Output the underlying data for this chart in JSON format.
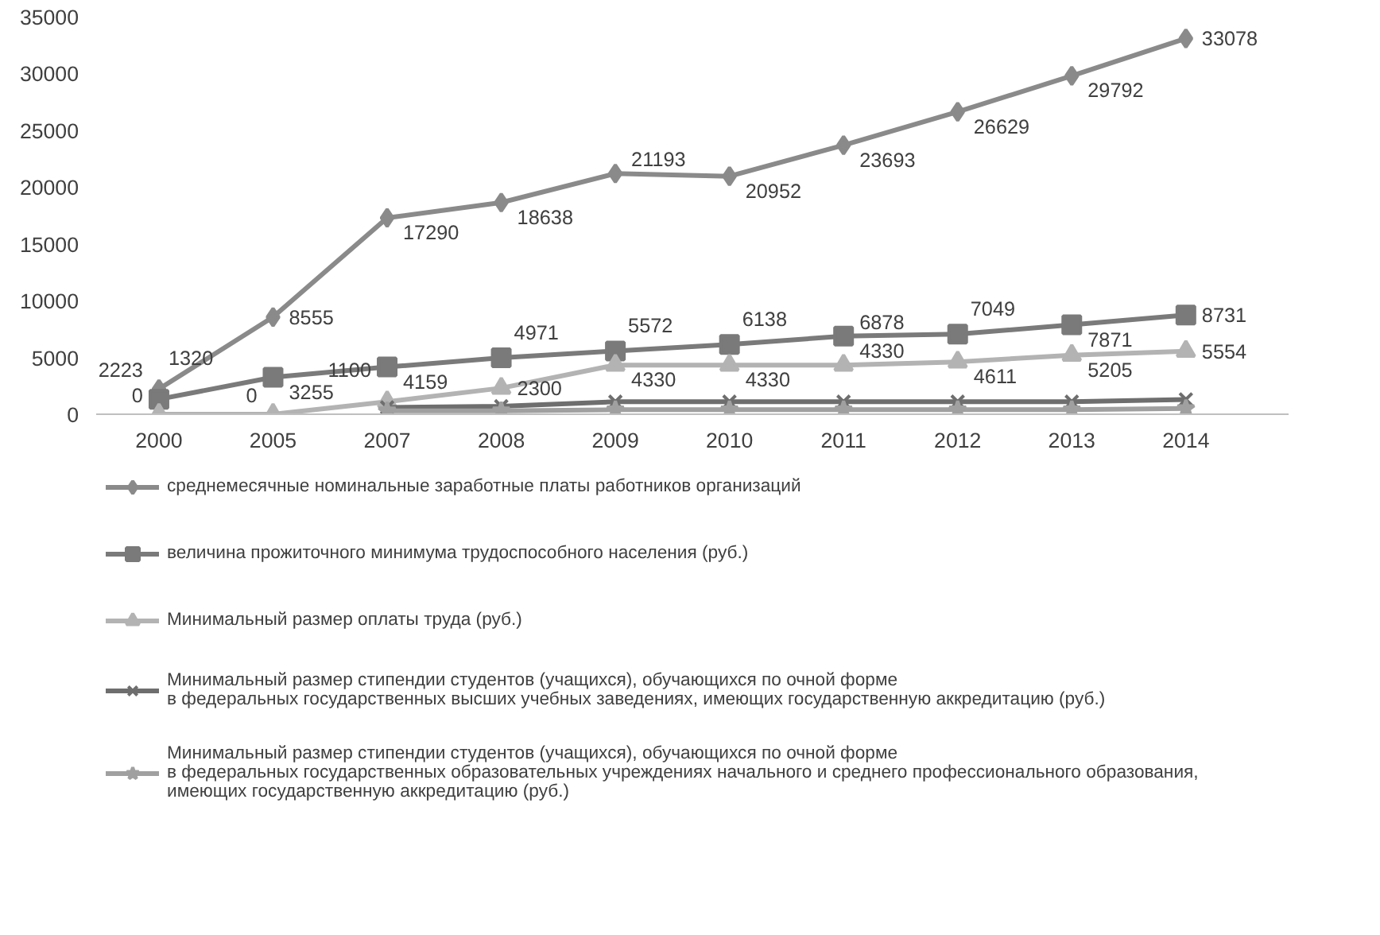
{
  "chart_data": {
    "type": "line",
    "categories": [
      "2000",
      "2005",
      "2007",
      "2008",
      "2009",
      "2010",
      "2011",
      "2012",
      "2013",
      "2014"
    ],
    "ylim": [
      0,
      35000
    ],
    "yticks": [
      0,
      5000,
      10000,
      15000,
      20000,
      25000,
      30000,
      35000
    ],
    "grid": false,
    "legend": "bottom",
    "line_style": "solid",
    "series": [
      {
        "name": "среднемесячные номинальные заработные платы работников организаций",
        "color": "#8a8a8a",
        "marker": "diamond",
        "values": [
          2223,
          8555,
          17290,
          18638,
          21193,
          20952,
          23693,
          26629,
          29792,
          33078
        ],
        "value_labels": [
          "2223",
          "8555",
          "17290",
          "18638",
          "21193",
          "20952",
          "23693",
          "26629",
          "29792",
          "33078"
        ]
      },
      {
        "name": "величина прожиточного минимума трудоспособного населения (руб.)",
        "color": "#7a7a7a",
        "marker": "square",
        "values": [
          1320,
          3255,
          4159,
          4971,
          5572,
          6138,
          6878,
          7049,
          7871,
          8731
        ],
        "value_labels": [
          "1320",
          "3255",
          "4159",
          "4971",
          "5572",
          "6138",
          "6878",
          "7049",
          "7871",
          "8731"
        ]
      },
      {
        "name": "Минимальный размер оплаты труда (руб.)",
        "color": "#b3b3b3",
        "marker": "triangle",
        "values": [
          0,
          0,
          1100,
          2300,
          4330,
          4330,
          4330,
          4611,
          5205,
          5554
        ],
        "value_labels": [
          "0",
          "0",
          "1100",
          "2300",
          "4330",
          "4330",
          "4330",
          "4611",
          "5205",
          "5554"
        ]
      },
      {
        "name": "Минимальный размер стипендии студентов (учащихся), обучающихся по очной форме\nв федеральных государственных высших учебных заведениях, имеющих государственную аккредитацию (руб.)",
        "color": "#6e6e6e",
        "marker": "cross",
        "values": [
          null,
          null,
          600,
          700,
          1100,
          1100,
          1100,
          1100,
          1100,
          1300
        ]
      },
      {
        "name": "Минимальный размер стипендии студентов (учащихся), обучающихся по очной форме\nв федеральных государственных образовательных учреждениях начального и среднего профессионального образования,\nимеющих государственную аккредитацию (руб.)",
        "color": "#a0a0a0",
        "marker": "star",
        "values": [
          null,
          null,
          300,
          300,
          400,
          400,
          400,
          400,
          400,
          500
        ]
      }
    ]
  }
}
